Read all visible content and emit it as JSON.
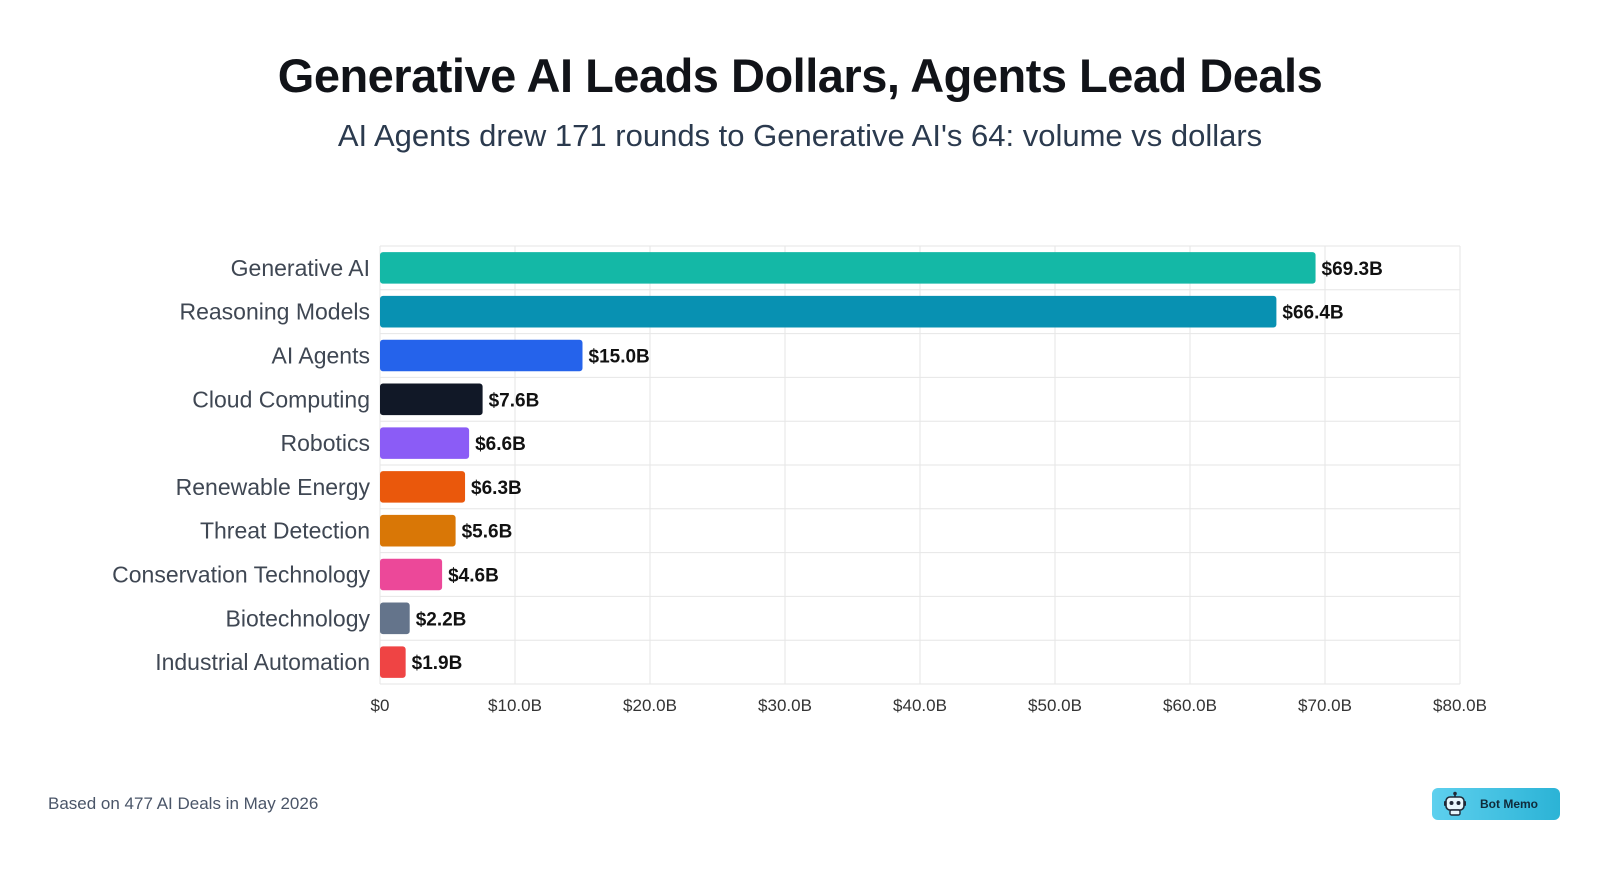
{
  "title": "Generative AI Leads Dollars, Agents Lead Deals",
  "subtitle": "AI Agents drew 171 rounds to Generative AI's 64: volume vs dollars",
  "footnote": "Based on 477 AI Deals in May 2026",
  "badge": {
    "label": "Bot Memo",
    "icon": "robot-icon"
  },
  "chart_data": {
    "type": "bar",
    "orientation": "horizontal",
    "categories": [
      "Generative AI",
      "Reasoning Models",
      "AI Agents",
      "Cloud Computing",
      "Robotics",
      "Renewable Energy",
      "Threat Detection",
      "Conservation Technology",
      "Biotechnology",
      "Industrial Automation"
    ],
    "values": [
      69.3,
      66.4,
      15.0,
      7.6,
      6.6,
      6.3,
      5.6,
      4.6,
      2.2,
      1.9
    ],
    "value_labels": [
      "$69.3B",
      "$66.4B",
      "$15.0B",
      "$7.6B",
      "$6.6B",
      "$6.3B",
      "$5.6B",
      "$4.6B",
      "$2.2B",
      "$1.9B"
    ],
    "colors": [
      "#14b8a6",
      "#0891b2",
      "#2563eb",
      "#111827",
      "#8b5cf6",
      "#ea580c",
      "#d97706",
      "#ec4899",
      "#64748b",
      "#ef4444"
    ],
    "xlim": [
      0,
      80
    ],
    "xticks": [
      0,
      10,
      20,
      30,
      40,
      50,
      60,
      70,
      80
    ],
    "xtick_labels": [
      "$0",
      "$10.0B",
      "$20.0B",
      "$30.0B",
      "$40.0B",
      "$50.0B",
      "$60.0B",
      "$70.0B",
      "$80.0B"
    ],
    "grid": true,
    "legend": "none"
  }
}
